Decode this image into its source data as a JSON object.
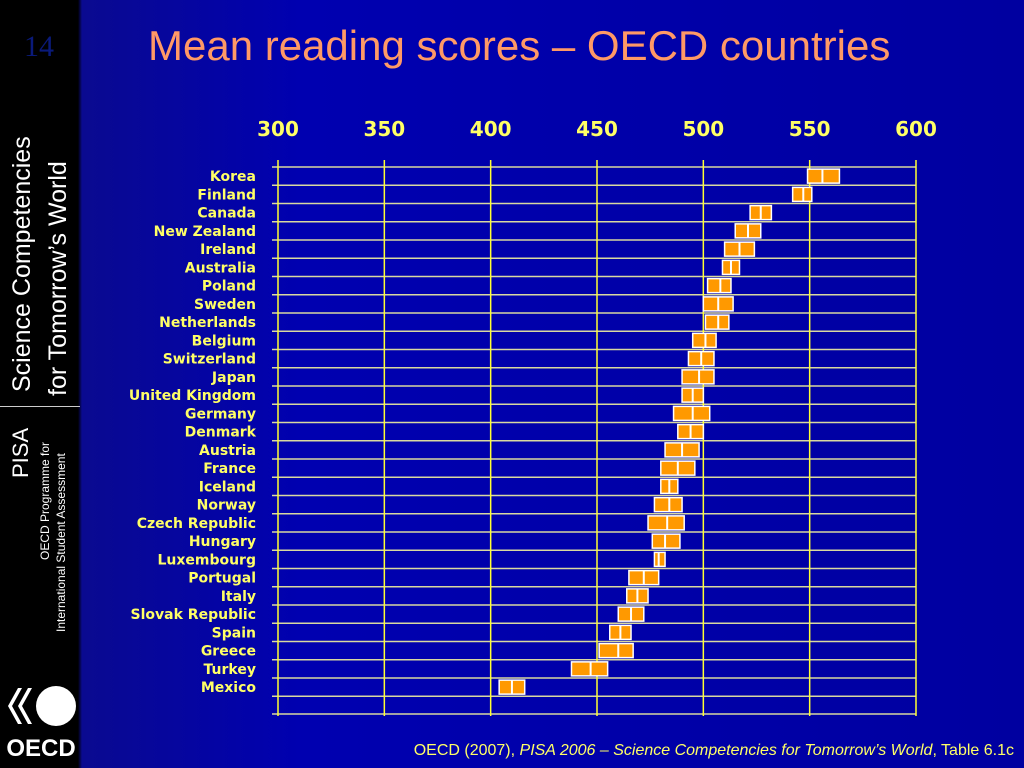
{
  "slide": {
    "number": "14",
    "title": "Mean reading scores – OECD countries"
  },
  "sidebar": {
    "line1": "Science Competencies",
    "line2": "for Tomorrow’s World",
    "pisa": "PISA",
    "prog1": "OECD Programme for",
    "prog2": "International Student Assessment",
    "logo": "OECD"
  },
  "footer": {
    "prefix": "OECD (2007), ",
    "italic": "PISA 2006 – Science Competencies for Tomorrow’s World",
    "suffix": ", Table 6.1c"
  },
  "colors": {
    "box": "#ff9900",
    "grid_v": "#ffff33",
    "grid_h": "#d8d8a0",
    "text": "#ffff66"
  },
  "chart_data": {
    "type": "interval",
    "title": "Mean reading scores – OECD countries",
    "xlim": [
      300,
      600
    ],
    "xticks": [
      "300",
      "350",
      "400",
      "450",
      "500",
      "550",
      "600"
    ],
    "tick_values": [
      300,
      350,
      400,
      450,
      500,
      550,
      600
    ],
    "categories": [
      "Korea",
      "Finland",
      "Canada",
      "New Zealand",
      "Ireland",
      "Australia",
      "Poland",
      "Sweden",
      "Netherlands",
      "Belgium",
      "Switzerland",
      "Japan",
      "United Kingdom",
      "Germany",
      "Denmark",
      "Austria",
      "France",
      "Iceland",
      "Norway",
      "Czech Republic",
      "Hungary",
      "Luxembourg",
      "Portugal",
      "Italy",
      "Slovak Republic",
      "Spain",
      "Greece",
      "Turkey",
      "Mexico"
    ],
    "mean": [
      556,
      547,
      527,
      521,
      517,
      513,
      508,
      507,
      507,
      501,
      499,
      498,
      495,
      495,
      494,
      490,
      488,
      484,
      484,
      483,
      482,
      479,
      472,
      469,
      466,
      461,
      460,
      447,
      410
    ],
    "low": [
      549,
      542,
      522,
      515,
      510,
      509,
      502,
      500,
      501,
      495,
      493,
      490,
      490,
      486,
      488,
      482,
      480,
      480,
      477,
      474,
      476,
      477,
      465,
      464,
      460,
      456,
      451,
      438,
      404
    ],
    "high": [
      564,
      551,
      532,
      527,
      524,
      517,
      513,
      514,
      512,
      506,
      505,
      505,
      500,
      503,
      500,
      498,
      496,
      488,
      490,
      491,
      489,
      482,
      479,
      474,
      472,
      466,
      467,
      455,
      416
    ]
  }
}
